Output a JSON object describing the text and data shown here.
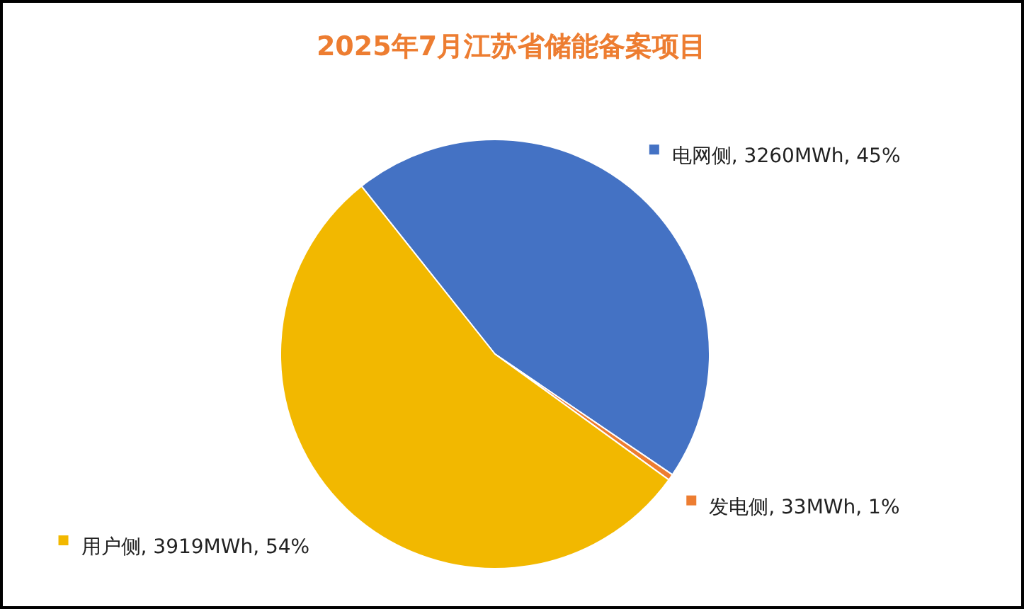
{
  "chart_data": {
    "type": "pie",
    "title": "2025年7月江苏省储能备案项目",
    "categories": [
      "电网侧",
      "发电侧",
      "用户侧"
    ],
    "values": [
      3260,
      33,
      3919
    ],
    "colors": [
      "#4472c4",
      "#ed7d31",
      "#f2b800"
    ],
    "value_labels": [
      "3260MWh, 45%",
      "33MWh, 1%",
      "3919MWh, 54%"
    ],
    "legend": "right"
  }
}
